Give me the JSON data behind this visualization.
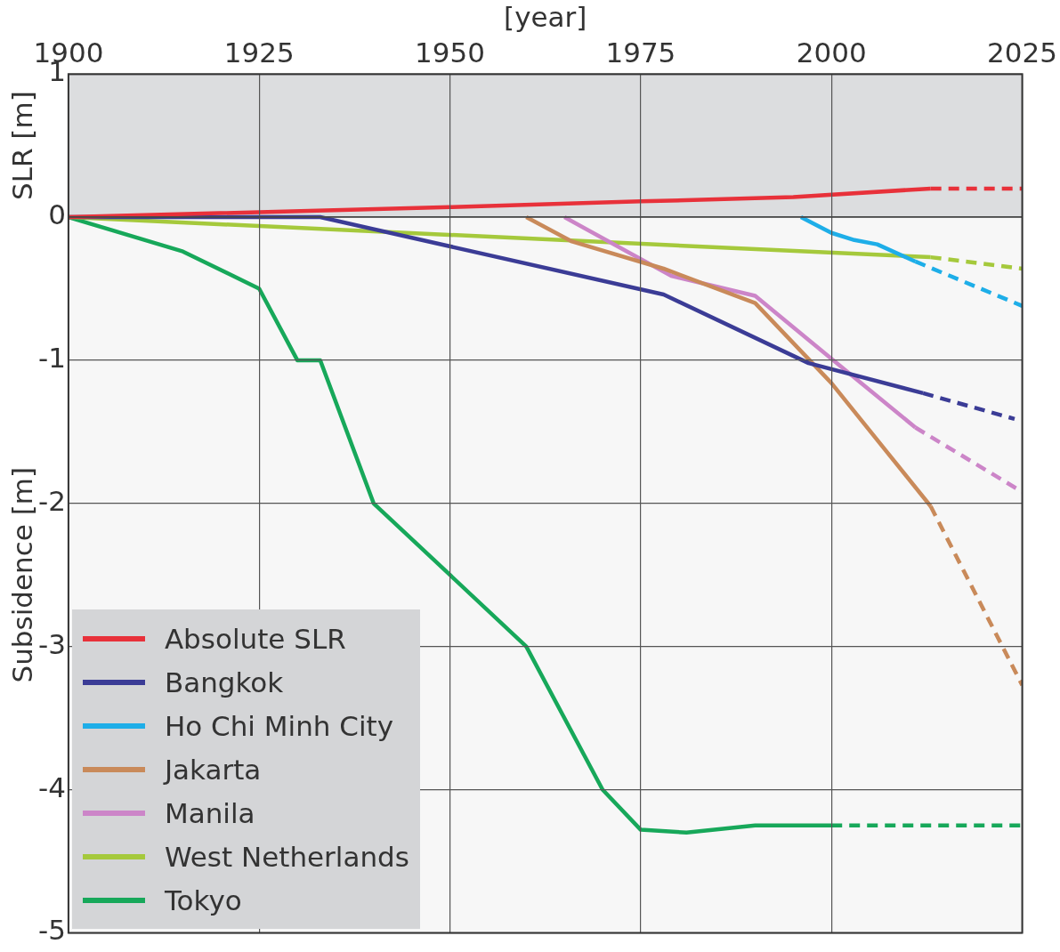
{
  "chart_data": {
    "type": "line",
    "xlabel": "[year]",
    "ylabel": "Subsidence [m]",
    "xlim": [
      1900,
      2025
    ],
    "xticks": [
      1900,
      1925,
      1950,
      1975,
      2000,
      2025
    ],
    "ylim": [
      -5,
      1
    ],
    "yticks": [
      -5,
      -4,
      -3,
      -2,
      -1,
      0,
      1
    ],
    "grid": true,
    "legend": "bottom left",
    "marker": "none",
    "bands": [
      {
        "axis": "y",
        "from": 0,
        "to": 1,
        "label": "SLR [m]",
        "color": "#dcdddf"
      }
    ],
    "ref_lines": [
      {
        "axis": "y",
        "value": 0,
        "color": "#444444"
      }
    ],
    "series": [
      {
        "name": "Absolute SLR",
        "color": "#e8313a",
        "x": [
          1900,
          1950,
          1975,
          1995,
          2013
        ],
        "values": [
          0,
          0.07,
          0.11,
          0.14,
          0.2
        ]
      },
      {
        "name": "Bangkok",
        "color": "#3b3c96",
        "x": [
          1900,
          1933,
          1978,
          1997,
          2012
        ],
        "values": [
          0,
          0,
          -0.54,
          -1.02,
          -1.23
        ]
      },
      {
        "name": "Ho Chi Minh City",
        "color": "#1eaee8",
        "x": [
          1996,
          2000,
          2003,
          2006,
          2011
        ],
        "values": [
          0,
          -0.11,
          -0.16,
          -0.19,
          -0.31
        ]
      },
      {
        "name": "Jakarta",
        "color": "#c98a5a",
        "x": [
          1960,
          1966,
          1978,
          1990,
          2000,
          2013
        ],
        "values": [
          0,
          -0.17,
          -0.36,
          -0.6,
          -1.16,
          -2.02
        ]
      },
      {
        "name": "Manila",
        "color": "#cc85c8",
        "x": [
          1965,
          1979,
          1990,
          2000,
          2011
        ],
        "values": [
          0,
          -0.41,
          -0.55,
          -0.99,
          -1.47
        ]
      },
      {
        "name": "West Netherlands",
        "color": "#a5c93c",
        "x": [
          1900,
          2013
        ],
        "values": [
          0,
          -0.28
        ]
      },
      {
        "name": "Tokyo",
        "color": "#17a85a",
        "x": [
          1900,
          1915,
          1925,
          1930,
          1933,
          1940,
          1950,
          1960,
          1970,
          1975,
          1981,
          1990,
          2000
        ],
        "values": [
          0,
          -0.24,
          -0.5,
          -1.0,
          -1.0,
          -2.0,
          -2.5,
          -3.0,
          -4.0,
          -4.28,
          -4.3,
          -4.25,
          -4.25
        ]
      },
      {
        "color": "#e8313a",
        "line_style": "dashed",
        "x": [
          2013,
          2025
        ],
        "values": [
          0.2,
          0.2
        ]
      },
      {
        "color": "#3b3c96",
        "line_style": "dashed",
        "x": [
          2012,
          2024
        ],
        "values": [
          -1.23,
          -1.41
        ]
      },
      {
        "color": "#1eaee8",
        "line_style": "dashed",
        "x": [
          2011,
          2025
        ],
        "values": [
          -0.31,
          -0.62
        ]
      },
      {
        "color": "#c98a5a",
        "line_style": "dashed",
        "x": [
          2013,
          2025
        ],
        "values": [
          -2.02,
          -3.27
        ]
      },
      {
        "color": "#cc85c8",
        "line_style": "dashed",
        "x": [
          2011,
          2025
        ],
        "values": [
          -1.47,
          -1.92
        ]
      },
      {
        "color": "#a5c93c",
        "line_style": "dashed",
        "x": [
          2013,
          2025
        ],
        "values": [
          -0.28,
          -0.36
        ]
      },
      {
        "color": "#17a85a",
        "line_style": "dashed",
        "x": [
          2000,
          2025
        ],
        "values": [
          -4.25,
          -4.25
        ]
      }
    ]
  }
}
